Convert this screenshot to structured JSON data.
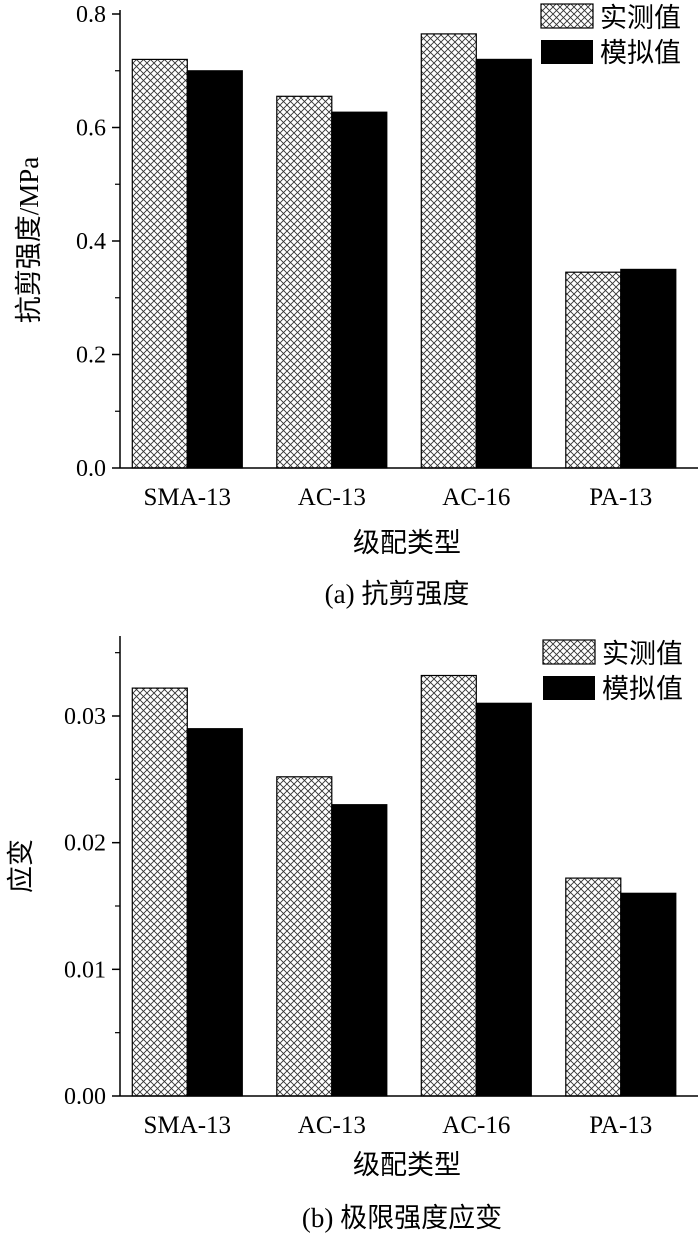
{
  "chart_data": [
    {
      "type": "bar",
      "title": "",
      "caption": "(a) 抗剪强度",
      "xlabel": "级配类型",
      "ylabel": "抗剪强度/MPa",
      "categories": [
        "SMA-13",
        "AC-13",
        "AC-16",
        "PA-13"
      ],
      "series": [
        {
          "name": "实测值",
          "values": [
            0.72,
            0.655,
            0.765,
            0.345
          ],
          "color": "#d9d9d9",
          "fill": "crosshatch"
        },
        {
          "name": "模拟值",
          "values": [
            0.7,
            0.627,
            0.72,
            0.35
          ],
          "color": "#000000",
          "fill": "solid"
        }
      ],
      "ylim": [
        0,
        0.8
      ],
      "yticks": [
        0.0,
        0.2,
        0.4,
        0.6,
        0.8
      ],
      "ytick_labels": [
        "0.0",
        "0.2",
        "0.4",
        "0.6",
        "0.8"
      ],
      "legend": "top-right",
      "grid": false
    },
    {
      "type": "bar",
      "title": "",
      "caption": "(b) 极限强度应变",
      "xlabel": "级配类型",
      "ylabel": "应变",
      "categories": [
        "SMA-13",
        "AC-13",
        "AC-16",
        "PA-13"
      ],
      "series": [
        {
          "name": "实测值",
          "values": [
            0.0322,
            0.0252,
            0.0332,
            0.0172
          ],
          "color": "#d9d9d9",
          "fill": "crosshatch"
        },
        {
          "name": "模拟值",
          "values": [
            0.029,
            0.023,
            0.031,
            0.016
          ],
          "color": "#000000",
          "fill": "solid"
        }
      ],
      "ylim": [
        0,
        0.036
      ],
      "yticks": [
        0.0,
        0.01,
        0.02,
        0.03
      ],
      "ytick_labels": [
        "0.00",
        "0.01",
        "0.02",
        "0.03"
      ],
      "legend": "top-right",
      "grid": false
    }
  ]
}
